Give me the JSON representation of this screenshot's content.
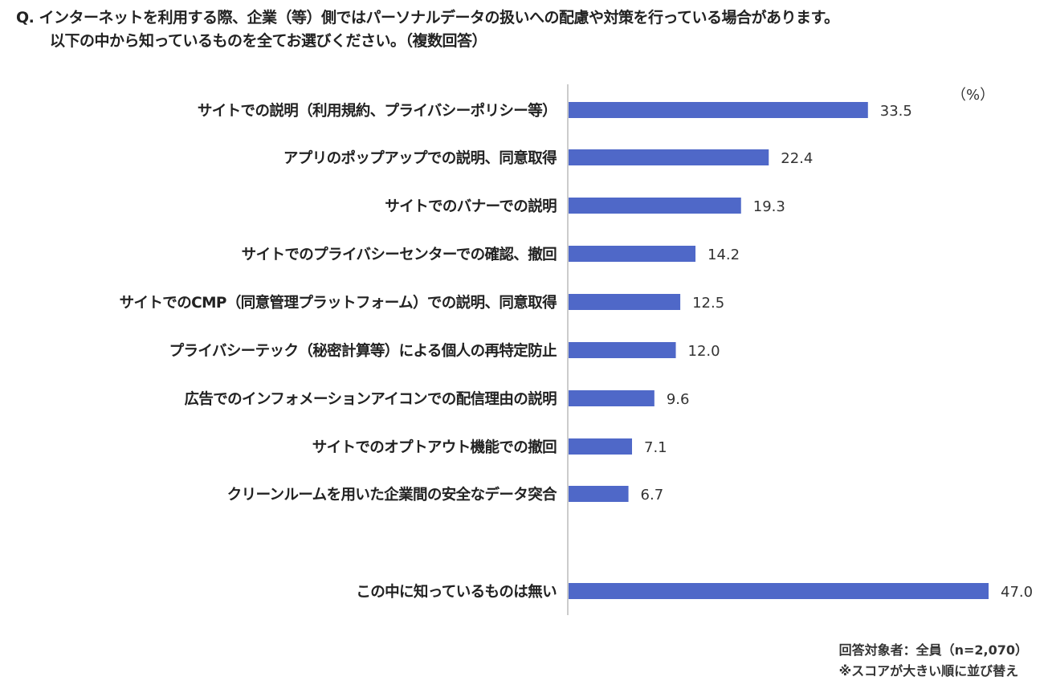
{
  "question": {
    "line1": "Q. インターネットを利用する際、企業（等）側ではパーソナルデータの扱いへの配慮や対策を行っている場合があります。",
    "line2": "以下の中から知っているものを全てお選びください。（複数回答）"
  },
  "chart_data": {
    "type": "bar",
    "orientation": "horizontal",
    "unit_label": "（%）",
    "categories": [
      "サイトでの説明（利用規約、プライバシーポリシー等）",
      "アプリのポップアップでの説明、同意取得",
      "サイトでのバナーでの説明",
      "サイトでのプライバシーセンターでの確認、撤回",
      "サイトでのCMP（同意管理プラットフォーム）での説明、同意取得",
      "プライバシーテック（秘密計算等）による個人の再特定防止",
      "広告でのインフォメーションアイコンでの配信理由の説明",
      "サイトでのオプトアウト機能での撤回",
      "クリーンルームを用いた企業間の安全なデータ突合",
      "この中に知っているものは無い"
    ],
    "values": [
      33.5,
      22.4,
      19.3,
      14.2,
      12.5,
      12.0,
      9.6,
      7.1,
      6.7,
      47.0
    ],
    "value_labels": [
      "33.5",
      "22.4",
      "19.3",
      "14.2",
      "12.5",
      "12.0",
      "9.6",
      "7.1",
      "6.7",
      "47.0"
    ],
    "xlim": [
      0,
      50
    ],
    "grid": false,
    "bar_color": "#4F68C8",
    "axis_color": "#BBBBBB"
  },
  "footnote": {
    "respondents": "回答対象者：全員（n=2,070）",
    "sort_note": "※スコアが大きい順に並び替え"
  }
}
